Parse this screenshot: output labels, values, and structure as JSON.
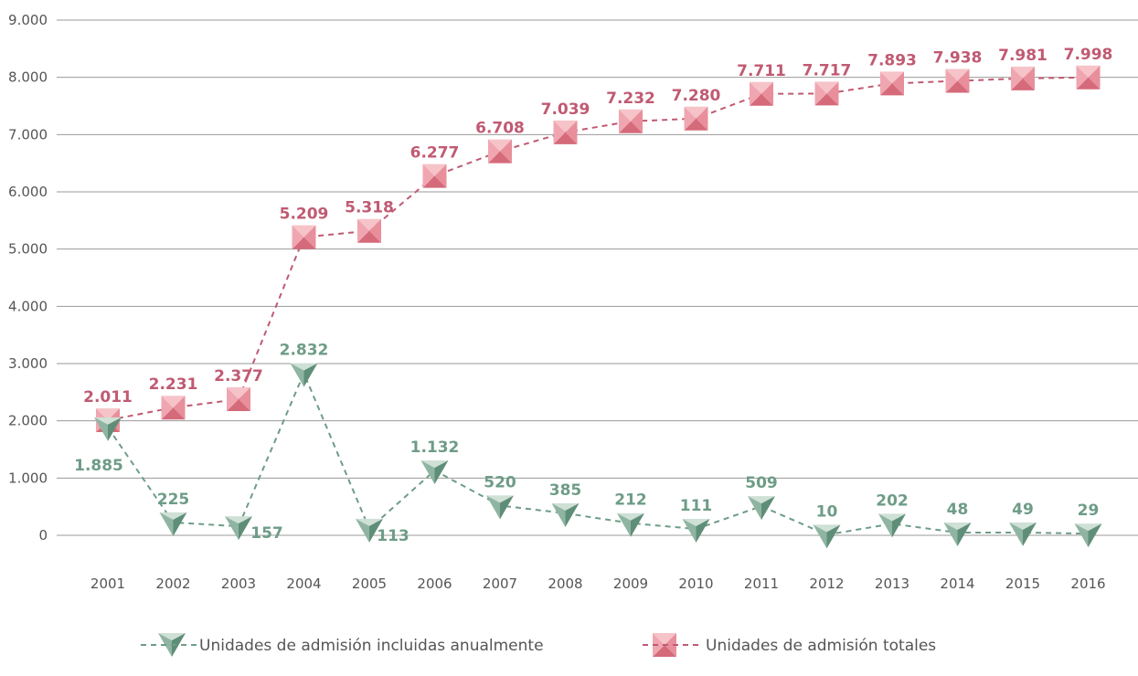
{
  "chart_data": {
    "type": "line",
    "x": [
      "2001",
      "2002",
      "2003",
      "2004",
      "2005",
      "2006",
      "2007",
      "2008",
      "2009",
      "2010",
      "2011",
      "2012",
      "2013",
      "2014",
      "2015",
      "2016"
    ],
    "ylim": [
      0,
      9000
    ],
    "yticks": [
      0,
      1000,
      2000,
      3000,
      4000,
      5000,
      6000,
      7000,
      8000,
      9000
    ],
    "ytick_labels": [
      "0",
      "1.000",
      "2.000",
      "3.000",
      "4.000",
      "5.000",
      "6.000",
      "7.000",
      "8.000",
      "9.000"
    ],
    "grid": true,
    "legend_position": "bottom",
    "series": [
      {
        "name": "Unidades de admisión incluidas anualmente",
        "color": "#6e9c87",
        "marker": "inverted-triangle",
        "values": [
          1885,
          225,
          157,
          2832,
          113,
          1132,
          520,
          385,
          212,
          111,
          509,
          10,
          202,
          48,
          49,
          29
        ],
        "labels": [
          "1.885",
          "225",
          "157",
          "2.832",
          "113",
          "1.132",
          "520",
          "385",
          "212",
          "111",
          "509",
          "10",
          "202",
          "48",
          "49",
          "29"
        ]
      },
      {
        "name": "Unidades de admisión totales",
        "color": "#c05a72",
        "marker": "square",
        "values": [
          2011,
          2231,
          2377,
          5209,
          5318,
          6277,
          6708,
          7039,
          7232,
          7280,
          7711,
          7717,
          7893,
          7938,
          7981,
          7998
        ],
        "labels": [
          "2.011",
          "2.231",
          "2.377",
          "5.209",
          "5.318",
          "6.277",
          "6.708",
          "7.039",
          "7.232",
          "7.280",
          "7.711",
          "7.717",
          "7.893",
          "7.938",
          "7.981",
          "7.998"
        ]
      }
    ]
  }
}
